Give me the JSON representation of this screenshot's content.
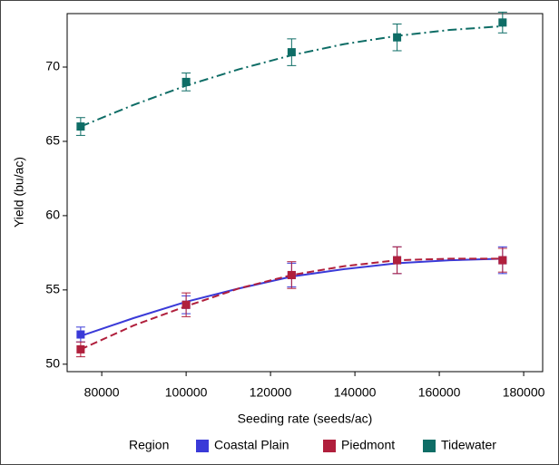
{
  "chart_data": {
    "type": "scatter",
    "x_label": "Seeding rate (seeds/ac)",
    "y_label": "Yield (bu/ac)",
    "x": [
      75000,
      100000,
      125000,
      150000,
      175000
    ],
    "fit_x": [
      75000,
      87500,
      100000,
      112500,
      125000,
      137500,
      150000,
      162500,
      175000
    ],
    "xlim": [
      71800,
      184500
    ],
    "xticks": [
      80000,
      100000,
      120000,
      140000,
      160000,
      180000
    ],
    "ylim": [
      49.5,
      73.6
    ],
    "yticks": [
      50,
      55,
      60,
      65,
      70
    ],
    "legend_title": "Region",
    "legend": "bottom",
    "series": [
      {
        "name": "Coastal Plain",
        "color": "#3a3ad8",
        "dash": "solid",
        "values": [
          52,
          54,
          56,
          57,
          57
        ],
        "errors": [
          0.5,
          0.6,
          0.8,
          0.9,
          0.9
        ],
        "fit": [
          51.9,
          53.1,
          54.2,
          55.1,
          55.9,
          56.4,
          56.8,
          57.0,
          57.1
        ]
      },
      {
        "name": "Piedmont",
        "color": "#b01f3c",
        "dash": "dashed",
        "values": [
          51,
          54,
          56,
          57,
          57
        ],
        "errors": [
          0.5,
          0.8,
          0.9,
          0.9,
          0.8
        ],
        "fit": [
          51.0,
          52.6,
          53.9,
          55.1,
          56.0,
          56.6,
          57.0,
          57.1,
          57.1
        ]
      },
      {
        "name": "Tidewater",
        "color": "#0e6d66",
        "dash": "dashdot",
        "values": [
          66,
          69,
          71,
          72,
          73
        ],
        "errors": [
          0.6,
          0.6,
          0.9,
          0.9,
          0.7
        ],
        "fit": [
          66.0,
          67.45,
          68.75,
          69.85,
          70.8,
          71.55,
          72.1,
          72.5,
          72.75
        ]
      }
    ]
  }
}
